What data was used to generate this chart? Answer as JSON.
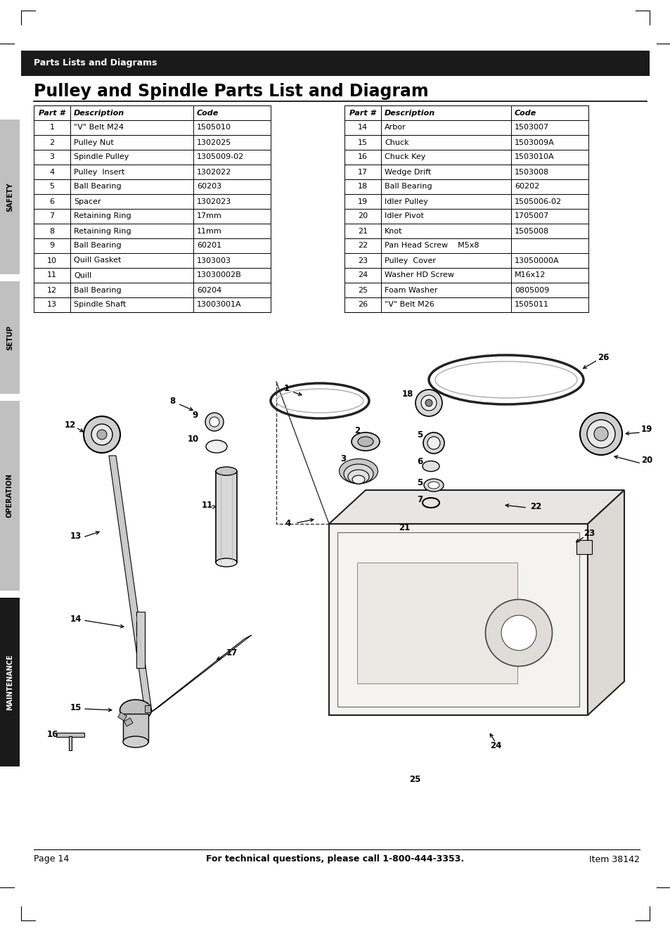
{
  "page_title": "Parts Lists and Diagrams",
  "section_title": "Pulley and Spindle Parts List and Diagram",
  "table_left": [
    [
      "Part #",
      "Description",
      "Code"
    ],
    [
      "1",
      "\"V\" Belt M24",
      "1505010"
    ],
    [
      "2",
      "Pulley Nut",
      "1302025"
    ],
    [
      "3",
      "Spindle Pulley",
      "1305009-02"
    ],
    [
      "4",
      "Pulley  Insert",
      "1302022"
    ],
    [
      "5",
      "Ball Bearing",
      "60203"
    ],
    [
      "6",
      "Spacer",
      "1302023"
    ],
    [
      "7",
      "Retaining Ring",
      "17mm"
    ],
    [
      "8",
      "Retaining Ring",
      "11mm"
    ],
    [
      "9",
      "Ball Bearing",
      "60201"
    ],
    [
      "10",
      "Quill Gasket",
      "1303003"
    ],
    [
      "11",
      "Quill",
      "13030002B"
    ],
    [
      "12",
      "Ball Bearing",
      "60204"
    ],
    [
      "13",
      "Spindle Shaft",
      "13003001A"
    ]
  ],
  "table_right": [
    [
      "Part #",
      "Description",
      "Code"
    ],
    [
      "14",
      "Arbor",
      "1503007"
    ],
    [
      "15",
      "Chuck",
      "1503009A"
    ],
    [
      "16",
      "Chuck Key",
      "1503010A"
    ],
    [
      "17",
      "Wedge Drift",
      "1503008"
    ],
    [
      "18",
      "Ball Bearing",
      "60202"
    ],
    [
      "19",
      "Idler Pulley",
      "1505006-02"
    ],
    [
      "20",
      "Idler Pivot",
      "1705007"
    ],
    [
      "21",
      "Knot",
      "1505008"
    ],
    [
      "22",
      "Pan Head Screw    M5x8",
      ""
    ],
    [
      "23",
      "Pulley  Cover",
      "13050000A"
    ],
    [
      "24",
      "Washer HD Screw",
      "M16x12"
    ],
    [
      "25",
      "Foam Washer",
      "0805009"
    ],
    [
      "26",
      "\"V\" Belt M26",
      "1505011"
    ]
  ],
  "footer_left": "Page 14",
  "footer_center": "For technical questions, please call 1-800-444-3353.",
  "footer_right": "Item 38142",
  "sidebar_sections": [
    [
      "SAFETY",
      170,
      390
    ],
    [
      "SETUP",
      400,
      560
    ],
    [
      "OPERATION",
      570,
      840
    ],
    [
      "MAINTENANCE",
      850,
      1090
    ]
  ],
  "bg_color": "#ffffff",
  "header_bg": "#1a1a1a",
  "header_text_color": "#ffffff"
}
